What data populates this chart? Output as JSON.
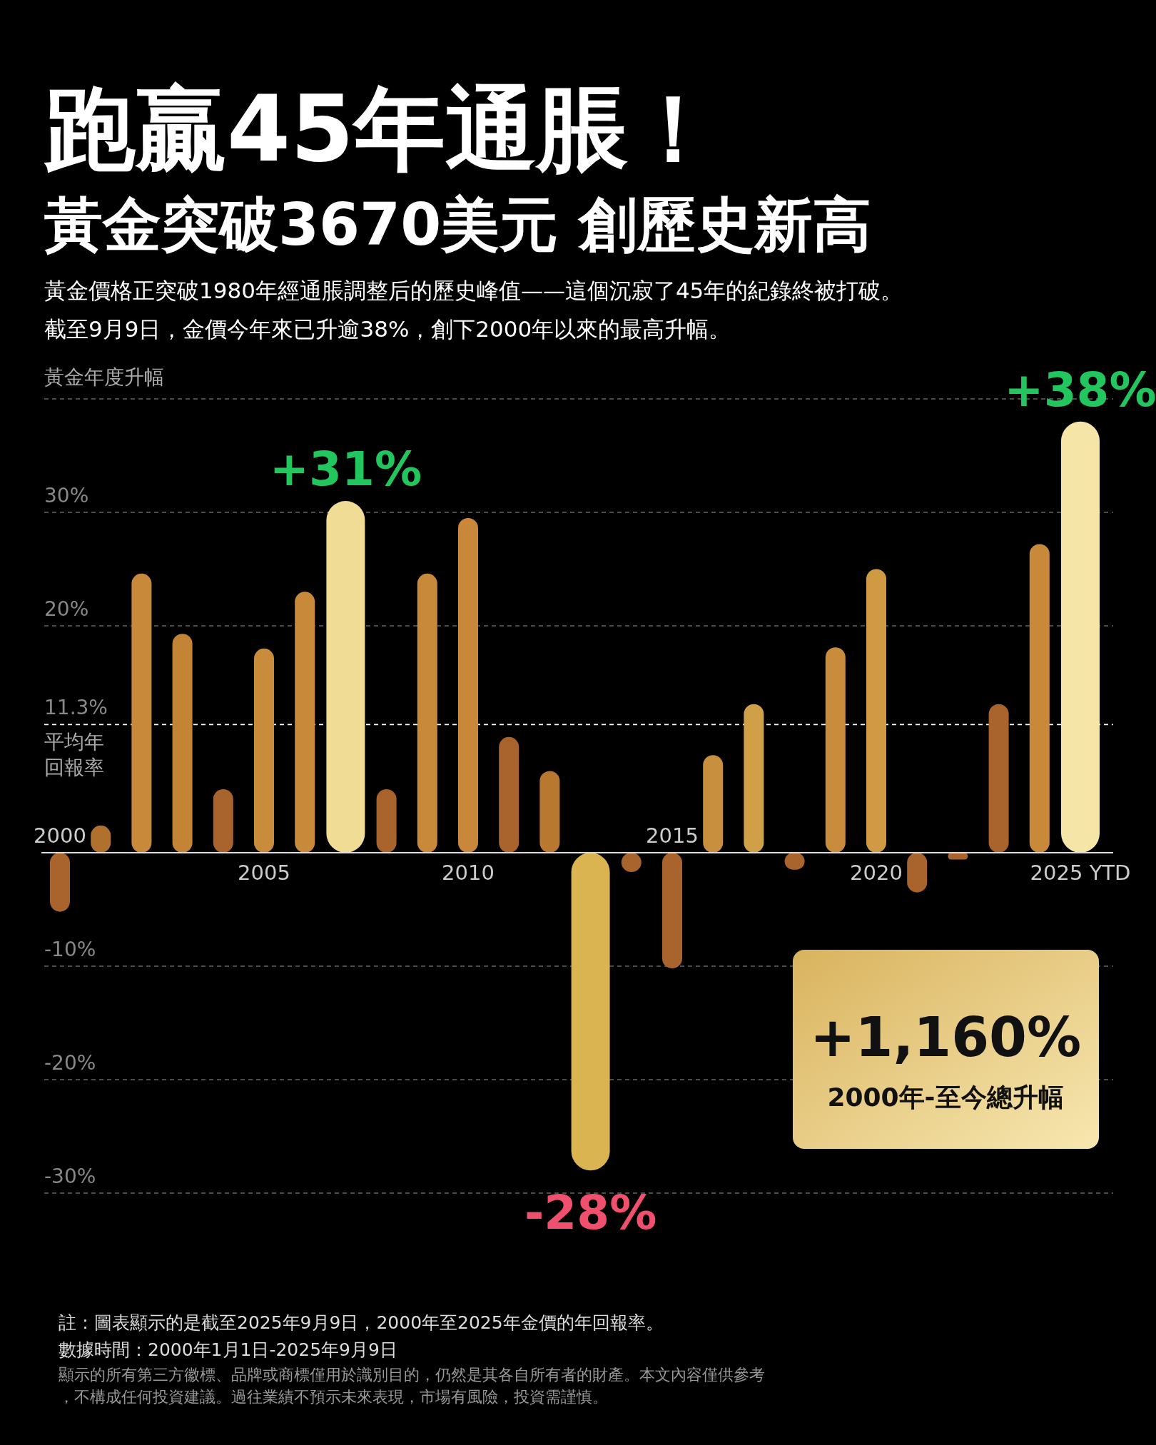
{
  "chart_data": {
    "type": "bar",
    "title": "跑贏45年通脹！",
    "subtitle": "黃金突破3670美元 創歷史新高",
    "ylabel": "黃金年度升幅",
    "categories": [
      "2000",
      null,
      null,
      null,
      null,
      "2005",
      null,
      null,
      null,
      null,
      "2010",
      null,
      null,
      null,
      null,
      "2015",
      null,
      null,
      null,
      null,
      "2020",
      null,
      null,
      null,
      null,
      "2025 YTD"
    ],
    "values": [
      -5.2,
      2.4,
      24.6,
      19.3,
      5.6,
      18.0,
      23.0,
      31,
      5.6,
      24.6,
      29.5,
      10.2,
      7.2,
      -28,
      -1.7,
      -10.2,
      8.6,
      13.1,
      -1.5,
      18.1,
      25.0,
      -3.5,
      -0.6,
      13.1,
      27.2,
      38
    ],
    "value_labels": [
      null,
      null,
      null,
      null,
      null,
      null,
      null,
      "+31%",
      null,
      null,
      null,
      null,
      null,
      "-28%",
      null,
      null,
      null,
      null,
      null,
      null,
      null,
      null,
      null,
      null,
      null,
      "+38%"
    ],
    "colors": [
      "#a8642c",
      "#b0702e",
      "#c88a3a",
      "#c38535",
      "#a8642c",
      "#c88c3c",
      "#c88a3a",
      "#f1dc95",
      "#a8642c",
      "#c88a3a",
      "#c8873a",
      "#a8642c",
      "#b8782f",
      "#d9b450",
      "#a8642c",
      "#a8642c",
      "#c8903e",
      "#d0a048",
      "#a8642c",
      "#c88c3c",
      "#d09a44",
      "#a8642c",
      "#a8642c",
      "#a8642c",
      "#c88a3a",
      "#f5e6a8"
    ],
    "ylim": [
      -30,
      40
    ],
    "yticks": [
      {
        "value": 40,
        "label": null
      },
      {
        "value": 30,
        "label": "30%"
      },
      {
        "value": 20,
        "label": "20%"
      },
      {
        "value": 11.3,
        "label": "11.3%"
      },
      {
        "value": -10,
        "label": "-10%"
      },
      {
        "value": -20,
        "label": "-20%"
      },
      {
        "value": -30,
        "label": "-30%"
      }
    ],
    "ref_lines": [
      {
        "axis": "y",
        "value": 11.3,
        "label": "平均年回報率",
        "line_style": "dashed",
        "color": "#ffffff"
      }
    ],
    "grid": "y",
    "annotations": [
      "黃金價格正突破1980年經通脹調整后的歷史峰值——這個沉寂了45年的紀錄終被打破。",
      "截至9月9日，金價今年來已升逾38%，創下2000年以來的最高升幅。",
      "+1,160%",
      "2000年-至今總升幅",
      "註：圖表顯示的是截至2025年9月9日，2000年至2025年金價的年回報率。",
      "數據時間：2000年1月1日-2025年9月9日",
      "顯示的所有第三方徽標、品牌或商標僅用於識別目的，仍然是其各自所有者的財產。本文內容僅供參考，不構成任何投資建議。過往業績不預示未來表現，市場有風險，投資需謹慎。"
    ]
  }
}
